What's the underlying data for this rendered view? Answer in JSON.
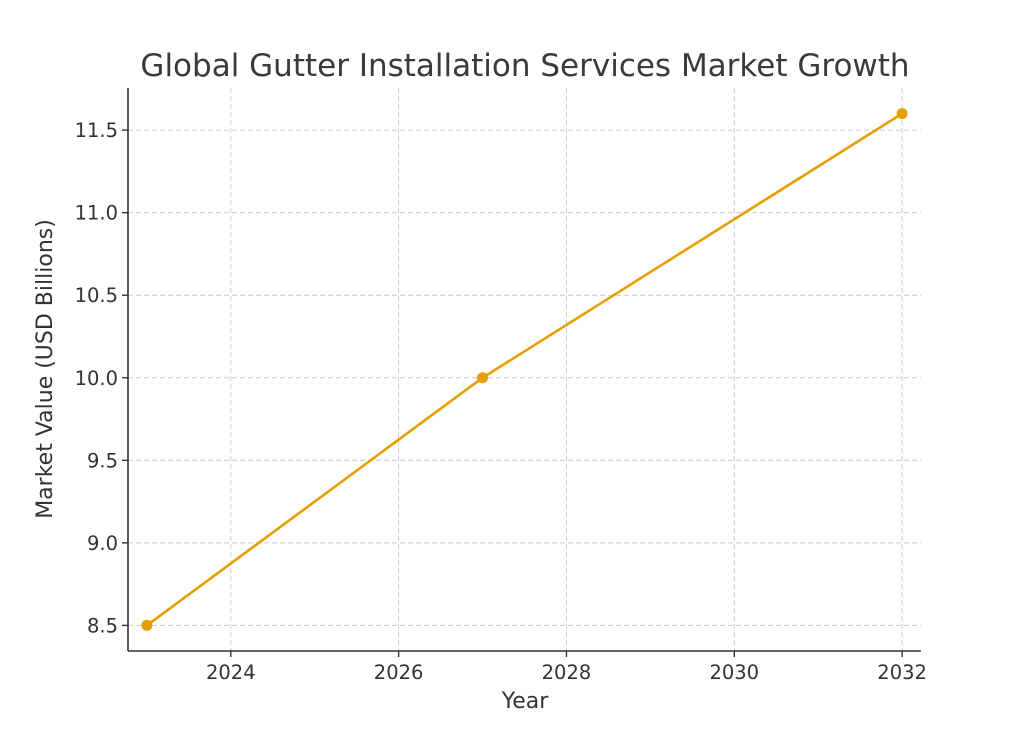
{
  "chart_data": {
    "type": "line",
    "title": "Global Gutter Installation Services Market Growth",
    "xlabel": "Year",
    "ylabel": "Market Value (USD Billions)",
    "xlim": [
      2022.775,
      2032.225
    ],
    "ylim": [
      8.345,
      11.755
    ],
    "x_ticks": [
      2024,
      2026,
      2028,
      2030,
      2032
    ],
    "y_ticks": [
      8.5,
      9.0,
      9.5,
      10.0,
      10.5,
      11.0,
      11.5
    ],
    "x_tick_labels": [
      "2024",
      "2026",
      "2028",
      "2030",
      "2032"
    ],
    "y_tick_labels": [
      "8.5",
      "9.0",
      "9.5",
      "10.0",
      "10.5",
      "11.0",
      "11.5"
    ],
    "grid": true,
    "series": [
      {
        "color": "#E69F00",
        "marker": "circle",
        "x": [
          2023,
          2027,
          2032
        ],
        "y": [
          8.5,
          10.0,
          11.6
        ]
      }
    ]
  }
}
